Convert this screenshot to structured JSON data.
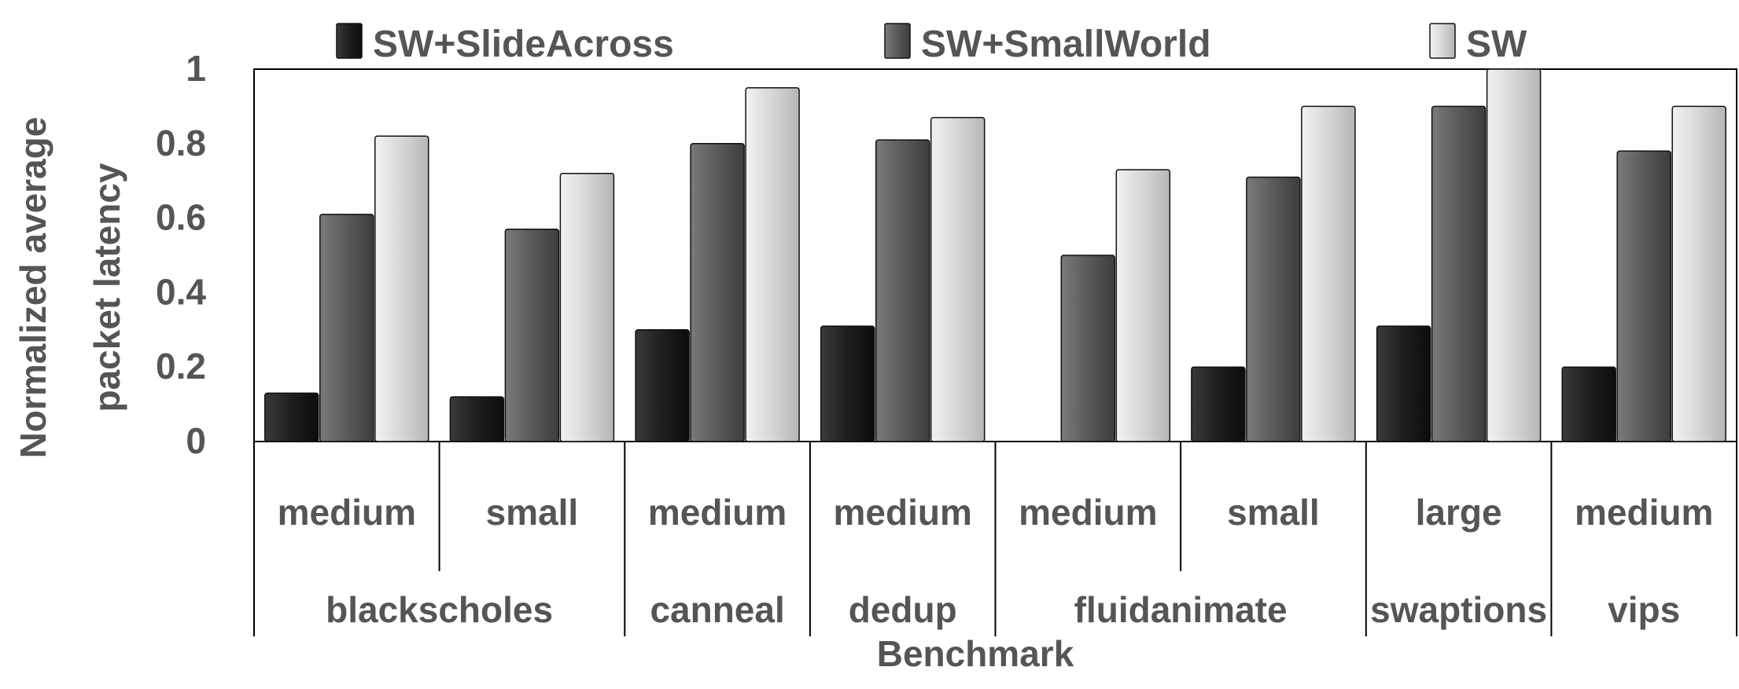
{
  "chart_data": {
    "type": "bar",
    "title": "",
    "xlabel": "Benchmark",
    "ylabel_lines": [
      "Normalized average",
      "packet latency"
    ],
    "ylim": [
      0,
      1
    ],
    "yticks": [
      "0",
      "0.2",
      "0.4",
      "0.6",
      "0.8",
      "1"
    ],
    "grid": false,
    "legend_position": "top",
    "categories": [
      "medium",
      "small",
      "medium",
      "medium",
      "medium",
      "small",
      "large",
      "medium"
    ],
    "groups": [
      {
        "label": "blackscholes",
        "span": 2
      },
      {
        "label": "canneal",
        "span": 1
      },
      {
        "label": "dedup",
        "span": 1
      },
      {
        "label": "fluidanimate",
        "span": 2
      },
      {
        "label": "swaptions",
        "span": 1
      },
      {
        "label": "vips",
        "span": 1
      }
    ],
    "series": [
      {
        "name": "SW+SlideAcross",
        "color": "#1c1c1c",
        "values": [
          0.13,
          0.12,
          0.3,
          0.31,
          0.0,
          0.2,
          0.31,
          0.2
        ]
      },
      {
        "name": "SW+SmallWorld",
        "color": "#595959",
        "values": [
          0.61,
          0.57,
          0.8,
          0.81,
          0.5,
          0.71,
          0.9,
          0.78
        ]
      },
      {
        "name": "SW",
        "color": "#d4d4d4",
        "values": [
          0.82,
          0.72,
          0.95,
          0.87,
          0.73,
          0.9,
          1.0,
          0.9
        ]
      }
    ]
  }
}
